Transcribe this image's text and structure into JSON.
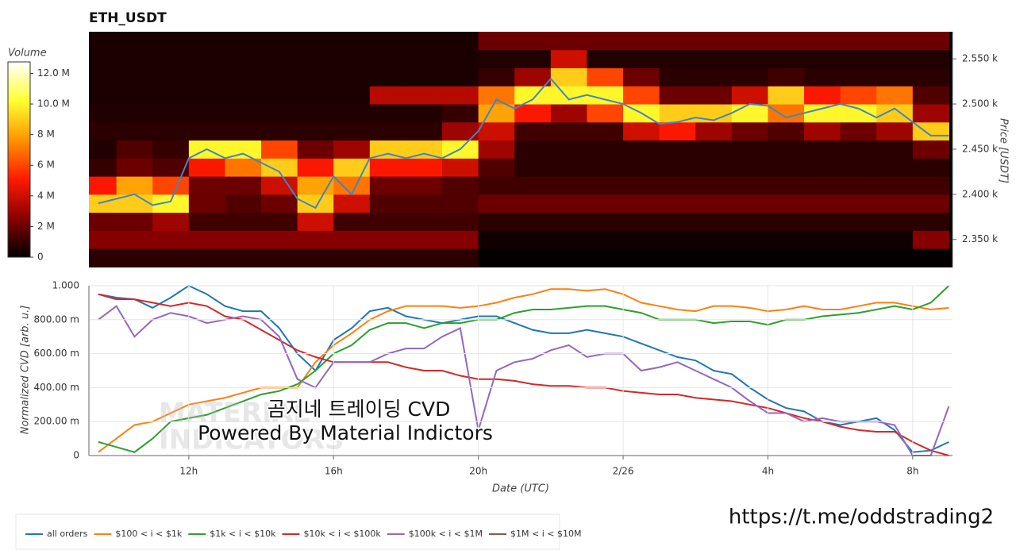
{
  "chart_data": [
    {
      "type": "heatmap",
      "title": "ETH_USDT",
      "ylabel": "Price [USDT]",
      "xlim": [
        9.24,
        33.1
      ],
      "ylim": [
        2319,
        2580
      ],
      "yticks": [
        {
          "value": 2350,
          "label": "2.350 k"
        },
        {
          "value": 2400,
          "label": "2.400 k"
        },
        {
          "value": 2450,
          "label": "2.450 k"
        },
        {
          "value": 2500,
          "label": "2.500 k"
        },
        {
          "value": 2550,
          "label": "2.550 k"
        }
      ],
      "x_bins": [
        9,
        10,
        11,
        12,
        13,
        14,
        15,
        16,
        17,
        18,
        19,
        20,
        21,
        22,
        23,
        24,
        25,
        26,
        27,
        28,
        29,
        30,
        31,
        32,
        33
      ],
      "y_bins": [
        2320,
        2340,
        2360,
        2380,
        2400,
        2420,
        2440,
        2460,
        2480,
        2500,
        2520,
        2540,
        2560,
        2580
      ],
      "z": [
        [
          0.8,
          0.8,
          0.8,
          0.8,
          0.8,
          0.8,
          0.8,
          0.8,
          0.8,
          0.8,
          0.8,
          0.1,
          0.1,
          0.1,
          0.1,
          0.1,
          0.1,
          0.1,
          0.1,
          0.1,
          0.1,
          0.1,
          0.1,
          0.1
        ],
        [
          2.5,
          2.5,
          2.5,
          2.5,
          2.5,
          2.5,
          2.5,
          2.5,
          2.5,
          2.5,
          2.5,
          0.3,
          0.3,
          0.3,
          0.3,
          0.3,
          0.3,
          0.3,
          0.3,
          0.3,
          0.3,
          0.3,
          0.3,
          2.5
        ],
        [
          2,
          2,
          3,
          1.2,
          1.2,
          1.2,
          4,
          1.2,
          1.2,
          1.2,
          1.2,
          0.8,
          0.8,
          0.8,
          0.8,
          0.8,
          0.8,
          0.8,
          0.8,
          0.8,
          0.8,
          0.8,
          0.8,
          0.8
        ],
        [
          9,
          9,
          10,
          2,
          1.5,
          2,
          9,
          4,
          1.5,
          1.5,
          1.5,
          2,
          2,
          2,
          2,
          2,
          2,
          2,
          2,
          2,
          2,
          2,
          2,
          2
        ],
        [
          5,
          8,
          6,
          2,
          2,
          4,
          8,
          7,
          2,
          2,
          1.5,
          1.2,
          1.2,
          1.2,
          1.2,
          1.2,
          1.2,
          1.2,
          1.2,
          1.2,
          1.2,
          1.2,
          1.2,
          1.2
        ],
        [
          1,
          2,
          1.5,
          5,
          7,
          9,
          5,
          9,
          5,
          5,
          4,
          1.5,
          0.8,
          0.8,
          0.8,
          0.8,
          0.8,
          0.8,
          0.8,
          0.8,
          0.8,
          0.8,
          0.8,
          0.8
        ],
        [
          0.6,
          1.5,
          1,
          10,
          10,
          6,
          2,
          3,
          9,
          9,
          10,
          3,
          0.8,
          0.8,
          0.8,
          0.8,
          0.8,
          0.8,
          0.8,
          0.8,
          0.8,
          0.8,
          0.8,
          2
        ],
        [
          0.8,
          0.8,
          0.8,
          0.8,
          0.8,
          0.8,
          0.8,
          0.8,
          0.8,
          0.8,
          3,
          4,
          1.2,
          1.2,
          1.2,
          4,
          5,
          3,
          2,
          1.5,
          3,
          2,
          3,
          9
        ],
        [
          0.6,
          0.6,
          0.6,
          0.6,
          0.6,
          0.6,
          0.6,
          0.6,
          0.6,
          0.6,
          1,
          8,
          5,
          3,
          6,
          10,
          9,
          9,
          10,
          7,
          10,
          10,
          9,
          3
        ],
        [
          0.5,
          0.5,
          0.5,
          0.5,
          0.5,
          0.5,
          0.5,
          0.5,
          3.5,
          3.5,
          3.5,
          7,
          10,
          10,
          10,
          6,
          2,
          2,
          4,
          9,
          5,
          6,
          7,
          1.5
        ],
        [
          0.5,
          0.5,
          0.5,
          0.5,
          0.5,
          0.5,
          0.5,
          0.5,
          0.5,
          0.5,
          0.5,
          1,
          3,
          9,
          6,
          2,
          0.8,
          0.8,
          0.8,
          1.2,
          0.8,
          0.8,
          0.8,
          0.8
        ],
        [
          0.5,
          0.5,
          0.5,
          0.5,
          0.5,
          0.5,
          0.5,
          0.5,
          0.5,
          0.5,
          0.5,
          0.6,
          0.6,
          4,
          0.6,
          0.6,
          0.6,
          0.6,
          0.6,
          0.6,
          0.6,
          0.6,
          0.6,
          0.6
        ],
        [
          0.5,
          0.5,
          0.5,
          0.5,
          0.5,
          0.5,
          0.5,
          0.5,
          0.5,
          0.5,
          0.5,
          2,
          2,
          2,
          2,
          2,
          2,
          2,
          2,
          2,
          2,
          2,
          2,
          2
        ]
      ],
      "zlim": [
        0,
        12.75
      ],
      "colorbar_label": "Volume",
      "colorbar_ticks": [
        0,
        {
          "value": 2,
          "label": "2 M"
        },
        {
          "value": 4,
          "label": "4 M"
        },
        {
          "value": 6,
          "label": "6 M"
        },
        {
          "value": 8,
          "label": "8 M"
        },
        {
          "value": 10,
          "label": "10.0 M"
        },
        {
          "value": 12,
          "label": "12.0 M"
        }
      ],
      "colorscale": [
        "#000000",
        "#8a0000",
        "#ff1a00",
        "#ff9400",
        "#ffff30",
        "#ffffff"
      ],
      "line": {
        "color": "#3f86c4",
        "x": [
          9.5,
          10,
          10.5,
          11,
          11.5,
          12,
          12.5,
          13,
          13.5,
          14,
          14.5,
          15,
          15.5,
          16,
          16.5,
          17,
          17.5,
          18,
          18.5,
          19,
          19.5,
          20,
          20.5,
          21,
          21.5,
          22,
          22.5,
          23,
          23.5,
          24,
          24.5,
          25,
          25.5,
          26,
          26.5,
          27,
          27.5,
          28,
          28.5,
          29,
          29.5,
          30,
          30.5,
          31,
          31.5,
          32,
          32.5,
          33
        ],
        "values": [
          2390,
          2395,
          2400,
          2388,
          2392,
          2440,
          2450,
          2440,
          2445,
          2435,
          2425,
          2395,
          2385,
          2420,
          2400,
          2440,
          2445,
          2440,
          2445,
          2440,
          2450,
          2470,
          2505,
          2495,
          2505,
          2528,
          2505,
          2510,
          2505,
          2500,
          2490,
          2478,
          2480,
          2485,
          2482,
          2490,
          2500,
          2498,
          2485,
          2490,
          2495,
          2500,
          2495,
          2485,
          2495,
          2480,
          2465,
          2465
        ]
      }
    },
    {
      "type": "line",
      "ylabel": "Normalized CVD [arb. u.]",
      "xlabel": "Date (UTC)",
      "xlim": [
        9.24,
        33.1
      ],
      "xticks": [
        {
          "value": 12,
          "label": "12h"
        },
        {
          "value": 16,
          "label": "16h"
        },
        {
          "value": 20,
          "label": "20h"
        },
        {
          "value": 24,
          "label": "2/26"
        },
        {
          "value": 28,
          "label": "4h"
        },
        {
          "value": 32,
          "label": "8h"
        }
      ],
      "ylim": [
        0,
        1
      ],
      "yticks": [
        0,
        {
          "value": 0.2,
          "label": "200.00 m"
        },
        {
          "value": 0.4,
          "label": "400.00 m"
        },
        {
          "value": 0.6,
          "label": "600.00 m"
        },
        {
          "value": 0.8,
          "label": "800.00 m"
        },
        {
          "value": 1,
          "label": "1.000"
        }
      ],
      "grid": true,
      "legend": "bottom-left",
      "x": [
        9.5,
        10,
        10.5,
        11,
        11.5,
        12,
        12.5,
        13,
        13.5,
        14,
        14.5,
        15,
        15.5,
        16,
        16.5,
        17,
        17.5,
        18,
        18.5,
        19,
        19.5,
        20,
        20.5,
        21,
        21.5,
        22,
        22.5,
        23,
        23.5,
        24,
        24.5,
        25,
        25.5,
        26,
        26.5,
        27,
        27.5,
        28,
        28.5,
        29,
        29.5,
        30,
        30.5,
        31,
        31.5,
        32,
        32.5,
        33
      ],
      "series": [
        {
          "name": "all orders",
          "color": "#1f77b4",
          "values": [
            0.95,
            0.93,
            0.92,
            0.87,
            0.93,
            1.0,
            0.95,
            0.88,
            0.85,
            0.85,
            0.75,
            0.6,
            0.5,
            0.68,
            0.75,
            0.85,
            0.87,
            0.82,
            0.8,
            0.78,
            0.8,
            0.82,
            0.82,
            0.78,
            0.74,
            0.72,
            0.72,
            0.74,
            0.72,
            0.7,
            0.66,
            0.62,
            0.58,
            0.56,
            0.5,
            0.48,
            0.4,
            0.33,
            0.28,
            0.26,
            0.2,
            0.18,
            0.2,
            0.22,
            0.15,
            0.02,
            0.03,
            0.08
          ]
        },
        {
          "name": "$100 < i < $1k",
          "color": "#ff7f0e",
          "values": [
            0.02,
            0.1,
            0.18,
            0.2,
            0.25,
            0.3,
            0.32,
            0.34,
            0.37,
            0.4,
            0.4,
            0.4,
            0.55,
            0.65,
            0.72,
            0.8,
            0.85,
            0.88,
            0.88,
            0.88,
            0.87,
            0.88,
            0.9,
            0.93,
            0.95,
            0.98,
            0.98,
            0.97,
            0.98,
            0.95,
            0.9,
            0.88,
            0.86,
            0.85,
            0.88,
            0.88,
            0.87,
            0.85,
            0.86,
            0.88,
            0.86,
            0.86,
            0.88,
            0.9,
            0.9,
            0.88,
            0.86,
            0.87
          ]
        },
        {
          "name": "$1k < i < $10k",
          "color": "#2ca02c",
          "values": [
            0.08,
            0.05,
            0.02,
            0.1,
            0.2,
            0.22,
            0.24,
            0.28,
            0.32,
            0.36,
            0.38,
            0.42,
            0.5,
            0.6,
            0.65,
            0.74,
            0.78,
            0.78,
            0.75,
            0.78,
            0.78,
            0.8,
            0.8,
            0.84,
            0.86,
            0.86,
            0.87,
            0.88,
            0.88,
            0.86,
            0.84,
            0.8,
            0.8,
            0.8,
            0.78,
            0.79,
            0.79,
            0.77,
            0.8,
            0.8,
            0.82,
            0.83,
            0.84,
            0.86,
            0.88,
            0.86,
            0.9,
            1.0
          ]
        },
        {
          "name": "$10k < i < $100k",
          "color": "#d62728",
          "values": [
            0.95,
            0.92,
            0.92,
            0.9,
            0.88,
            0.9,
            0.88,
            0.82,
            0.8,
            0.74,
            0.68,
            0.62,
            0.58,
            0.55,
            0.55,
            0.55,
            0.55,
            0.52,
            0.5,
            0.5,
            0.47,
            0.45,
            0.45,
            0.44,
            0.42,
            0.41,
            0.41,
            0.4,
            0.4,
            0.38,
            0.37,
            0.36,
            0.36,
            0.34,
            0.33,
            0.32,
            0.3,
            0.28,
            0.25,
            0.22,
            0.2,
            0.17,
            0.15,
            0.14,
            0.14,
            0.08,
            0.03,
            0.0
          ]
        },
        {
          "name": "$100k < i < $1M",
          "color": "#9467bd",
          "values": [
            0.8,
            0.88,
            0.7,
            0.8,
            0.84,
            0.82,
            0.78,
            0.8,
            0.82,
            0.8,
            0.7,
            0.45,
            0.4,
            0.55,
            0.55,
            0.55,
            0.6,
            0.63,
            0.63,
            0.7,
            0.75,
            0.15,
            0.5,
            0.55,
            0.57,
            0.62,
            0.65,
            0.58,
            0.6,
            0.6,
            0.5,
            0.52,
            0.55,
            0.5,
            0.45,
            0.4,
            0.32,
            0.25,
            0.25,
            0.2,
            0.22,
            0.2,
            0.2,
            0.2,
            0.18,
            0.0,
            0.0,
            0.29
          ]
        },
        {
          "name": "$1M < i < $10M",
          "color": "#8c564b",
          "values": [
            null,
            null,
            null,
            null,
            null,
            null,
            null,
            null,
            null,
            null,
            null,
            null,
            null,
            null,
            null,
            null,
            null,
            null,
            null,
            null,
            null,
            null,
            null,
            null,
            null,
            null,
            null,
            null,
            null,
            null,
            null,
            null,
            null,
            null,
            null,
            null,
            null,
            null,
            null,
            null,
            null,
            null,
            null,
            null,
            null,
            null,
            null,
            null
          ]
        }
      ],
      "annotations": [
        "곰지네 트레이딩 CVD",
        "Powered By Material Indictors"
      ],
      "watermark": [
        "MATERIAL",
        "INDICATORS"
      ]
    }
  ],
  "footer_link": "https://t.me/oddstrading2"
}
